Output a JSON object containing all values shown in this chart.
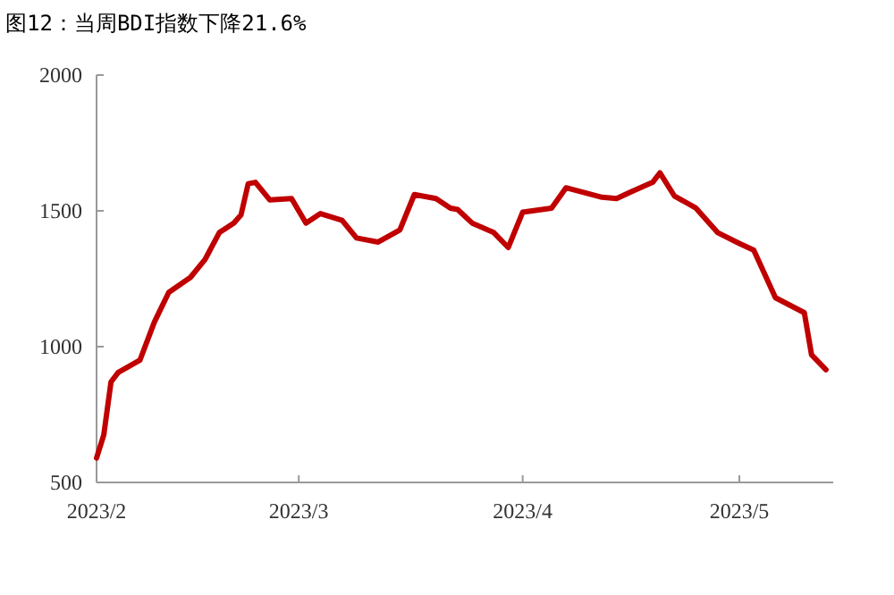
{
  "chart_data": {
    "type": "line",
    "title": "图12：当周BDI指数下降21.6%",
    "x": [
      "2023-02-01",
      "2023-02-02",
      "2023-02-03",
      "2023-02-04",
      "2023-02-07",
      "2023-02-09",
      "2023-02-10",
      "2023-02-11",
      "2023-02-14",
      "2023-02-16",
      "2023-02-18",
      "2023-02-20",
      "2023-02-21",
      "2023-02-22",
      "2023-02-23",
      "2023-02-25",
      "2023-02-28",
      "2023-03-02",
      "2023-03-04",
      "2023-03-07",
      "2023-03-09",
      "2023-03-12",
      "2023-03-15",
      "2023-03-17",
      "2023-03-20",
      "2023-03-22",
      "2023-03-23",
      "2023-03-25",
      "2023-03-28",
      "2023-03-30",
      "2023-04-01",
      "2023-04-05",
      "2023-04-07",
      "2023-04-12",
      "2023-04-14",
      "2023-04-16",
      "2023-04-19",
      "2023-04-20",
      "2023-04-22",
      "2023-04-25",
      "2023-04-28",
      "2023-05-01",
      "2023-05-03",
      "2023-05-06",
      "2023-05-10",
      "2023-05-11",
      "2023-05-13"
    ],
    "series": [
      {
        "color": "#c00000",
        "values": [
          590,
          675,
          870,
          905,
          950,
          1090,
          1145,
          1200,
          1255,
          1320,
          1420,
          1455,
          1485,
          1600,
          1605,
          1540,
          1545,
          1455,
          1490,
          1465,
          1400,
          1385,
          1430,
          1560,
          1545,
          1510,
          1505,
          1455,
          1420,
          1365,
          1495,
          1510,
          1585,
          1550,
          1545,
          1570,
          1605,
          1640,
          1555,
          1510,
          1420,
          1380,
          1355,
          1180,
          1125,
          970,
          915
        ]
      }
    ],
    "xlim": [
      "2023-02-01",
      "2023-05-14"
    ],
    "xticks": [
      {
        "value": "2023-02-01",
        "label": "2023/2"
      },
      {
        "value": "2023-03-01",
        "label": "2023/3"
      },
      {
        "value": "2023-04-01",
        "label": "2023/4"
      },
      {
        "value": "2023-05-01",
        "label": "2023/5"
      }
    ],
    "ylim": [
      500,
      2000
    ],
    "yticks": [
      500,
      1000,
      1500,
      2000
    ],
    "grid": false,
    "marker": "none",
    "line_style": "solid"
  }
}
